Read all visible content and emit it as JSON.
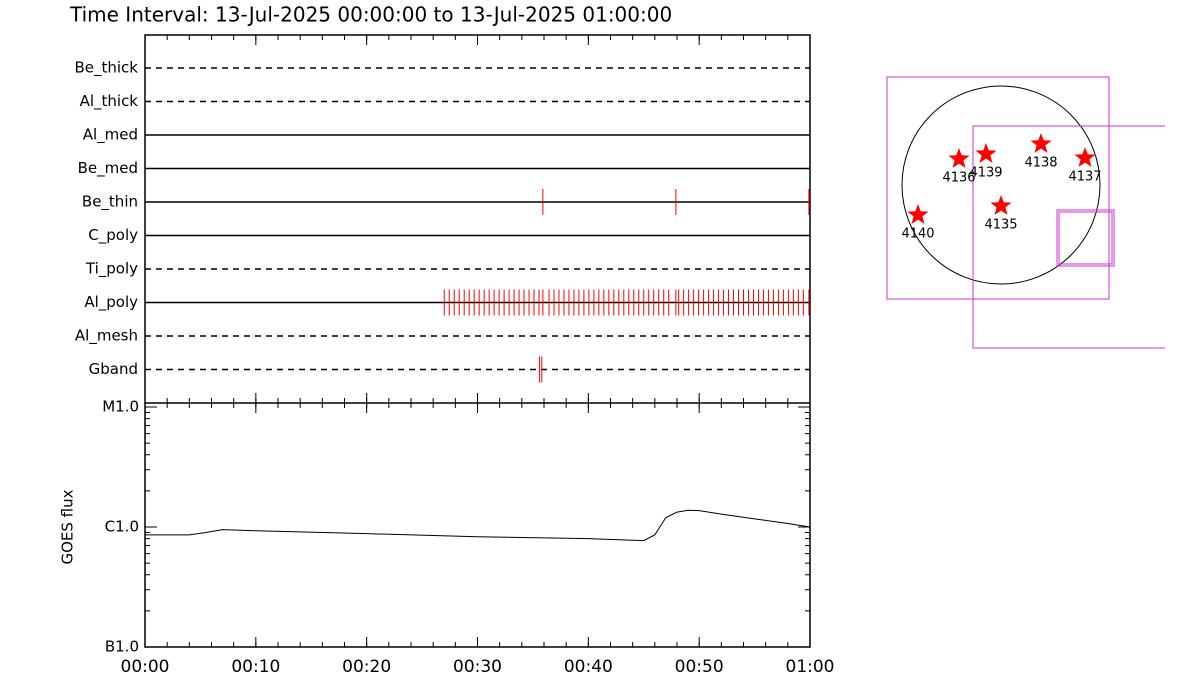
{
  "chart_data": [
    {
      "type": "timeline",
      "title": "Time Interval: 13-Jul-2025 00:00:00 to 13-Jul-2025 01:00:00",
      "xlim": [
        0,
        60
      ],
      "series": [
        {
          "name": "Be_thick",
          "line": "dashed",
          "color": "#ff0000",
          "values": []
        },
        {
          "name": "Al_thick",
          "line": "dashed",
          "color": "#ff0000",
          "values": []
        },
        {
          "name": "Al_med",
          "line": "solid",
          "color": "#ff0000",
          "values": []
        },
        {
          "name": "Be_med",
          "line": "solid",
          "color": "#ff0000",
          "values": []
        },
        {
          "name": "Be_thin",
          "line": "solid",
          "color": "#ff0000",
          "values": [
            35.9,
            47.9,
            59.9
          ]
        },
        {
          "name": "C_poly",
          "line": "solid",
          "color": "#ff0000",
          "values": []
        },
        {
          "name": "Ti_poly",
          "line": "dashed",
          "color": "#ff0000",
          "values": []
        },
        {
          "name": "Al_poly",
          "line": "solid",
          "color": "#ff0000",
          "values": [
            27.0,
            27.45,
            27.9,
            28.35,
            28.8,
            29.25,
            29.7,
            30.15,
            30.6,
            31.05,
            31.5,
            31.95,
            32.4,
            32.85,
            33.3,
            33.75,
            34.2,
            34.65,
            35.1,
            35.55,
            35.9,
            36.45,
            36.9,
            37.35,
            37.8,
            38.25,
            38.7,
            39.15,
            39.6,
            40.05,
            40.5,
            40.95,
            41.4,
            41.85,
            42.3,
            42.75,
            43.2,
            43.65,
            44.1,
            44.55,
            45.0,
            45.45,
            45.9,
            46.35,
            46.8,
            47.25,
            47.9,
            48.15,
            48.6,
            49.05,
            49.5,
            49.95,
            50.4,
            50.85,
            51.3,
            51.75,
            52.2,
            52.65,
            53.1,
            53.55,
            54.0,
            54.45,
            54.9,
            55.35,
            55.8,
            56.25,
            56.7,
            57.15,
            57.6,
            58.05,
            58.5,
            58.95,
            59.4,
            59.9
          ]
        },
        {
          "name": "Al_mesh",
          "line": "dashed",
          "color": "#ff0000",
          "values": []
        },
        {
          "name": "Gband",
          "line": "dashed",
          "color": "#ff0000",
          "values": [
            35.6,
            35.8
          ]
        }
      ]
    },
    {
      "type": "line",
      "ylabel": "GOES flux",
      "log_scale": true,
      "xlim": [
        0,
        60
      ],
      "ylim": [
        1e-07,
        1e-05
      ],
      "yticks": [
        {
          "value": 1e-05,
          "label": "M1.0"
        },
        {
          "value": 1e-06,
          "label": "C1.0"
        },
        {
          "value": 1e-07,
          "label": "B1.0"
        }
      ],
      "xticks": [
        {
          "value": 0,
          "label": "00:00"
        },
        {
          "value": 10,
          "label": "00:10"
        },
        {
          "value": 20,
          "label": "00:20"
        },
        {
          "value": 30,
          "label": "00:30"
        },
        {
          "value": 40,
          "label": "00:40"
        },
        {
          "value": 50,
          "label": "00:50"
        },
        {
          "value": 60,
          "label": "01:00"
        }
      ],
      "x": [
        0,
        4,
        5.5,
        7,
        10,
        20,
        30,
        40,
        45,
        46,
        47,
        48,
        49,
        50,
        52,
        55,
        58,
        60
      ],
      "series": [
        {
          "color": "#000000",
          "values": [
            8.6e-07,
            8.6e-07,
            9e-07,
            9.5e-07,
            9.3e-07,
            8.8e-07,
            8.3e-07,
            8e-07,
            7.7e-07,
            8.6e-07,
            1.2e-06,
            1.33e-06,
            1.38e-06,
            1.37e-06,
            1.28e-06,
            1.17e-06,
            1.07e-06,
            1e-06
          ]
        }
      ]
    }
  ],
  "sun_map": {
    "regions": [
      {
        "label": "4136"
      },
      {
        "label": "4139"
      },
      {
        "label": "4138"
      },
      {
        "label": "4137"
      },
      {
        "label": "4135"
      },
      {
        "label": "4140"
      }
    ]
  }
}
